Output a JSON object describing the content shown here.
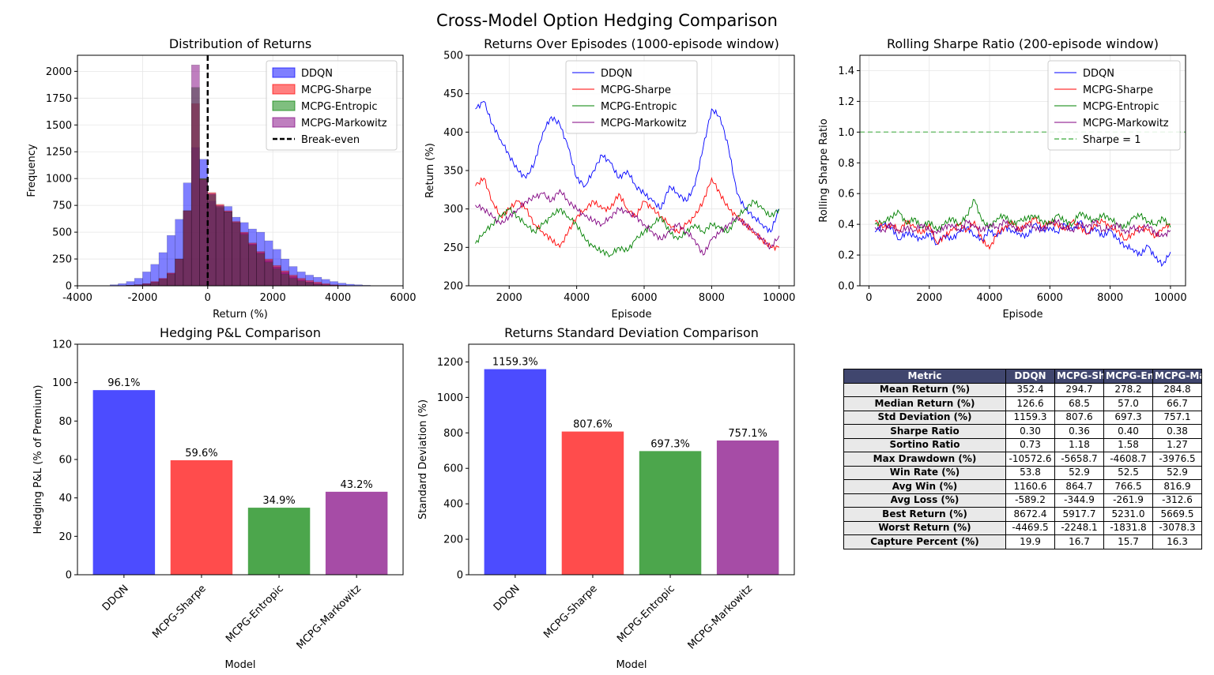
{
  "figure": {
    "title": "Cross-Model Option Hedging Comparison"
  },
  "colors": {
    "DDQN": "#0000ff",
    "MCPG-Sharpe": "#ff0000",
    "MCPG-Entropic": "#008000",
    "MCPG-Markowitz": "#800080"
  },
  "chart_data": [
    {
      "id": "hist",
      "type": "bar",
      "title": "Distribution of Returns",
      "xlabel": "Return (%)",
      "ylabel": "Frequency",
      "xlim": [
        -4000,
        6000
      ],
      "ylim": [
        0,
        2150
      ],
      "xticks": [
        -4000,
        -2000,
        0,
        2000,
        4000,
        6000
      ],
      "yticks": [
        0,
        250,
        500,
        750,
        1000,
        1250,
        1500,
        1750,
        2000
      ],
      "bin_width": 250,
      "legend": "top-right",
      "series": [
        {
          "name": "DDQN",
          "color": "#0000ff",
          "bin_start": -3000,
          "values": [
            10,
            20,
            40,
            70,
            130,
            200,
            310,
            470,
            620,
            960,
            1290,
            1180,
            790,
            730,
            740,
            640,
            590,
            530,
            500,
            420,
            340,
            250,
            180,
            130,
            100,
            80,
            60,
            40,
            25,
            15,
            10,
            5
          ]
        },
        {
          "name": "MCPG-Sharpe",
          "color": "#ff0000",
          "bin_start": -2500,
          "values": [
            5,
            10,
            20,
            40,
            70,
            120,
            250,
            700,
            1700,
            1000,
            870,
            760,
            700,
            600,
            500,
            400,
            320,
            250,
            190,
            140,
            100,
            70,
            50,
            35,
            20,
            10,
            5
          ]
        },
        {
          "name": "MCPG-Entropic",
          "color": "#008000",
          "bin_start": -2500,
          "values": [
            5,
            8,
            15,
            30,
            60,
            110,
            250,
            700,
            1850,
            1000,
            850,
            740,
            690,
            590,
            480,
            380,
            300,
            220,
            160,
            110,
            70,
            45,
            30,
            15,
            8,
            4
          ]
        },
        {
          "name": "MCPG-Markowitz",
          "color": "#800080",
          "bin_start": -2500,
          "values": [
            5,
            10,
            20,
            35,
            65,
            115,
            250,
            700,
            2060,
            990,
            860,
            750,
            690,
            590,
            490,
            390,
            310,
            235,
            175,
            125,
            85,
            55,
            35,
            20,
            10,
            5
          ]
        }
      ],
      "vline": {
        "name": "Break-even",
        "x": 0
      }
    },
    {
      "id": "rolling-returns",
      "type": "line",
      "title": "Returns Over Episodes (1000-episode window)",
      "xlabel": "Episode",
      "ylabel": "Return (%)",
      "xlim": [
        800,
        10450
      ],
      "ylim": [
        200,
        500
      ],
      "xticks": [
        2000,
        4000,
        6000,
        8000,
        10000
      ],
      "yticks": [
        200,
        250,
        300,
        350,
        400,
        450,
        500
      ],
      "legend": "top-center",
      "series": [
        {
          "name": "DDQN",
          "color": "#0000ff",
          "x": [
            1000,
            1250,
            1500,
            1750,
            2000,
            2250,
            2500,
            2750,
            3000,
            3250,
            3500,
            3750,
            4000,
            4250,
            4500,
            4750,
            5000,
            5250,
            5500,
            5750,
            6000,
            6250,
            6500,
            6750,
            7000,
            7250,
            7500,
            7750,
            8000,
            8250,
            8500,
            8750,
            9000,
            9250,
            9500,
            9750,
            10000
          ],
          "y": [
            430,
            440,
            410,
            390,
            370,
            350,
            340,
            360,
            400,
            420,
            410,
            380,
            340,
            330,
            350,
            370,
            360,
            340,
            350,
            330,
            320,
            310,
            300,
            330,
            320,
            310,
            330,
            380,
            430,
            420,
            380,
            320,
            300,
            290,
            280,
            270,
            300
          ]
        },
        {
          "name": "MCPG-Sharpe",
          "color": "#ff0000",
          "x": [
            1000,
            1250,
            1500,
            1750,
            2000,
            2250,
            2500,
            2750,
            3000,
            3250,
            3500,
            3750,
            4000,
            4250,
            4500,
            4750,
            5000,
            5250,
            5500,
            5750,
            6000,
            6250,
            6500,
            6750,
            7000,
            7250,
            7500,
            7750,
            8000,
            8250,
            8500,
            8750,
            9000,
            9250,
            9500,
            9750,
            10000
          ],
          "y": [
            330,
            340,
            310,
            290,
            300,
            310,
            300,
            280,
            270,
            260,
            250,
            270,
            290,
            300,
            310,
            300,
            300,
            320,
            300,
            290,
            310,
            300,
            290,
            280,
            270,
            280,
            290,
            310,
            340,
            320,
            300,
            290,
            280,
            270,
            260,
            250,
            250
          ]
        },
        {
          "name": "MCPG-Entropic",
          "color": "#008000",
          "x": [
            1000,
            1250,
            1500,
            1750,
            2000,
            2250,
            2500,
            2750,
            3000,
            3250,
            3500,
            3750,
            4000,
            4250,
            4500,
            4750,
            5000,
            5250,
            5500,
            5750,
            6000,
            6250,
            6500,
            6750,
            7000,
            7250,
            7500,
            7750,
            8000,
            8250,
            8500,
            8750,
            9000,
            9250,
            9500,
            9750,
            10000
          ],
          "y": [
            255,
            270,
            280,
            290,
            300,
            290,
            280,
            270,
            280,
            290,
            300,
            290,
            280,
            260,
            250,
            245,
            240,
            250,
            245,
            260,
            270,
            280,
            290,
            270,
            260,
            270,
            280,
            270,
            280,
            275,
            270,
            290,
            300,
            310,
            300,
            290,
            300
          ]
        },
        {
          "name": "MCPG-Markowitz",
          "color": "#800080",
          "x": [
            1000,
            1250,
            1500,
            1750,
            2000,
            2250,
            2500,
            2750,
            3000,
            3250,
            3500,
            3750,
            4000,
            4250,
            4500,
            4750,
            5000,
            5250,
            5500,
            5750,
            6000,
            6250,
            6500,
            6750,
            7000,
            7250,
            7500,
            7750,
            8000,
            8250,
            8500,
            8750,
            9000,
            9250,
            9500,
            9750,
            10000
          ],
          "y": [
            305,
            300,
            290,
            280,
            290,
            300,
            310,
            315,
            320,
            310,
            325,
            310,
            300,
            290,
            285,
            280,
            290,
            300,
            295,
            290,
            280,
            270,
            260,
            270,
            280,
            270,
            260,
            240,
            260,
            270,
            280,
            290,
            280,
            270,
            260,
            250,
            265
          ]
        }
      ]
    },
    {
      "id": "rolling-sharpe",
      "type": "line",
      "title": "Rolling Sharpe Ratio (200-episode window)",
      "xlabel": "Episode",
      "ylabel": "Rolling Sharpe Ratio",
      "xlim": [
        -300,
        10500
      ],
      "ylim": [
        0,
        1.5
      ],
      "xticks": [
        0,
        2000,
        4000,
        6000,
        8000,
        10000
      ],
      "yticks": [
        0.0,
        0.2,
        0.4,
        0.6,
        0.8,
        1.0,
        1.2,
        1.4
      ],
      "legend": "top-right",
      "series": [
        {
          "name": "DDQN",
          "color": "#0000ff",
          "x": [
            200,
            500,
            750,
            1000,
            1250,
            1500,
            1750,
            2000,
            2250,
            2500,
            2750,
            3000,
            3250,
            3500,
            3750,
            4000,
            4250,
            4500,
            4750,
            5000,
            5250,
            5500,
            5750,
            6000,
            6250,
            6500,
            6750,
            7000,
            7250,
            7500,
            7750,
            8000,
            8250,
            8500,
            8750,
            9000,
            9250,
            9500,
            9750,
            10000
          ],
          "y": [
            0.35,
            0.4,
            0.38,
            0.3,
            0.35,
            0.32,
            0.3,
            0.34,
            0.27,
            0.33,
            0.3,
            0.35,
            0.38,
            0.33,
            0.3,
            0.36,
            0.32,
            0.38,
            0.36,
            0.34,
            0.32,
            0.4,
            0.36,
            0.38,
            0.35,
            0.4,
            0.36,
            0.42,
            0.34,
            0.38,
            0.32,
            0.36,
            0.3,
            0.26,
            0.24,
            0.2,
            0.26,
            0.18,
            0.14,
            0.22
          ]
        },
        {
          "name": "MCPG-Sharpe",
          "color": "#ff0000",
          "x": [
            200,
            500,
            750,
            1000,
            1250,
            1500,
            1750,
            2000,
            2250,
            2500,
            2750,
            3000,
            3250,
            3500,
            3750,
            4000,
            4250,
            4500,
            4750,
            5000,
            5250,
            5500,
            5750,
            6000,
            6250,
            6500,
            6750,
            7000,
            7250,
            7500,
            7750,
            8000,
            8250,
            8500,
            8750,
            9000,
            9250,
            9500,
            9750,
            10000
          ],
          "y": [
            0.42,
            0.38,
            0.4,
            0.36,
            0.42,
            0.38,
            0.34,
            0.4,
            0.28,
            0.32,
            0.36,
            0.4,
            0.36,
            0.42,
            0.3,
            0.24,
            0.34,
            0.38,
            0.42,
            0.36,
            0.4,
            0.44,
            0.38,
            0.42,
            0.4,
            0.36,
            0.42,
            0.38,
            0.34,
            0.4,
            0.42,
            0.38,
            0.36,
            0.3,
            0.34,
            0.38,
            0.36,
            0.32,
            0.38,
            0.4
          ]
        },
        {
          "name": "MCPG-Entropic",
          "color": "#008000",
          "x": [
            200,
            500,
            750,
            1000,
            1250,
            1500,
            1750,
            2000,
            2250,
            2500,
            2750,
            3000,
            3250,
            3500,
            3750,
            4000,
            4250,
            4500,
            4750,
            5000,
            5250,
            5500,
            5750,
            6000,
            6250,
            6500,
            6750,
            7000,
            7250,
            7500,
            7750,
            8000,
            8250,
            8500,
            8750,
            9000,
            9250,
            9500,
            9750,
            10000
          ],
          "y": [
            0.4,
            0.42,
            0.45,
            0.48,
            0.4,
            0.44,
            0.38,
            0.42,
            0.36,
            0.4,
            0.44,
            0.4,
            0.46,
            0.56,
            0.42,
            0.38,
            0.44,
            0.46,
            0.4,
            0.42,
            0.44,
            0.46,
            0.42,
            0.4,
            0.46,
            0.42,
            0.4,
            0.48,
            0.44,
            0.42,
            0.46,
            0.44,
            0.4,
            0.38,
            0.44,
            0.46,
            0.42,
            0.4,
            0.44,
            0.38
          ]
        },
        {
          "name": "MCPG-Markowitz",
          "color": "#800080",
          "x": [
            200,
            500,
            750,
            1000,
            1250,
            1500,
            1750,
            2000,
            2250,
            2500,
            2750,
            3000,
            3250,
            3500,
            3750,
            4000,
            4250,
            4500,
            4750,
            5000,
            5250,
            5500,
            5750,
            6000,
            6250,
            6500,
            6750,
            7000,
            7250,
            7500,
            7750,
            8000,
            8250,
            8500,
            8750,
            9000,
            9250,
            9500,
            9750,
            10000
          ],
          "y": [
            0.38,
            0.36,
            0.4,
            0.34,
            0.38,
            0.36,
            0.4,
            0.36,
            0.34,
            0.38,
            0.4,
            0.36,
            0.42,
            0.38,
            0.36,
            0.4,
            0.38,
            0.42,
            0.38,
            0.36,
            0.4,
            0.38,
            0.36,
            0.4,
            0.42,
            0.38,
            0.36,
            0.4,
            0.38,
            0.42,
            0.36,
            0.38,
            0.4,
            0.34,
            0.38,
            0.36,
            0.4,
            0.34,
            0.32,
            0.36
          ]
        }
      ],
      "hline": {
        "name": "Sharpe = 1",
        "y": 1.0,
        "color": "#5cb85c"
      }
    },
    {
      "id": "pnl-bars",
      "type": "bar",
      "title": "Hedging P&L Comparison",
      "xlabel": "Model",
      "ylabel": "Hedging P&L (% of Premium)",
      "categories": [
        "DDQN",
        "MCPG-Sharpe",
        "MCPG-Entropic",
        "MCPG-Markowitz"
      ],
      "values": [
        96.1,
        59.6,
        34.9,
        43.2
      ],
      "value_labels": [
        "96.1%",
        "59.6%",
        "34.9%",
        "43.2%"
      ],
      "colors": [
        "#0000ff",
        "#ff0000",
        "#008000",
        "#800080"
      ],
      "ylim": [
        0,
        120
      ],
      "yticks": [
        0,
        20,
        40,
        60,
        80,
        100,
        120
      ]
    },
    {
      "id": "std-bars",
      "type": "bar",
      "title": "Returns Standard Deviation Comparison",
      "xlabel": "Model",
      "ylabel": "Standard Deviation (%)",
      "categories": [
        "DDQN",
        "MCPG-Sharpe",
        "MCPG-Entropic",
        "MCPG-Markowitz"
      ],
      "values": [
        1159.3,
        807.6,
        697.3,
        757.1
      ],
      "value_labels": [
        "1159.3%",
        "807.6%",
        "697.3%",
        "757.1%"
      ],
      "colors": [
        "#0000ff",
        "#ff0000",
        "#008000",
        "#800080"
      ],
      "ylim": [
        0,
        1300
      ],
      "yticks": [
        0,
        200,
        400,
        600,
        800,
        1000,
        1200
      ]
    }
  ],
  "table": {
    "header": [
      "Metric",
      "DDQN",
      "MCPG-Sharpe",
      "MCPG-Entropic",
      "MCPG-Markowitz"
    ],
    "rows": [
      [
        "Mean Return (%)",
        "352.4",
        "294.7",
        "278.2",
        "284.8"
      ],
      [
        "Median Return (%)",
        "126.6",
        "68.5",
        "57.0",
        "66.7"
      ],
      [
        "Std Deviation (%)",
        "1159.3",
        "807.6",
        "697.3",
        "757.1"
      ],
      [
        "Sharpe Ratio",
        "0.30",
        "0.36",
        "0.40",
        "0.38"
      ],
      [
        "Sortino Ratio",
        "0.73",
        "1.18",
        "1.58",
        "1.27"
      ],
      [
        "Max Drawdown (%)",
        "-10572.6",
        "-5658.7",
        "-4608.7",
        "-3976.5"
      ],
      [
        "Win Rate (%)",
        "53.8",
        "52.9",
        "52.5",
        "52.9"
      ],
      [
        "Avg Win (%)",
        "1160.6",
        "864.7",
        "766.5",
        "816.9"
      ],
      [
        "Avg Loss (%)",
        "-589.2",
        "-344.9",
        "-261.9",
        "-312.6"
      ],
      [
        "Best Return (%)",
        "8672.4",
        "5917.7",
        "5231.0",
        "5669.5"
      ],
      [
        "Worst Return (%)",
        "-4469.5",
        "-2248.1",
        "-1831.8",
        "-3078.3"
      ],
      [
        "Capture Percent (%)",
        "19.9",
        "16.7",
        "15.7",
        "16.3"
      ]
    ]
  }
}
